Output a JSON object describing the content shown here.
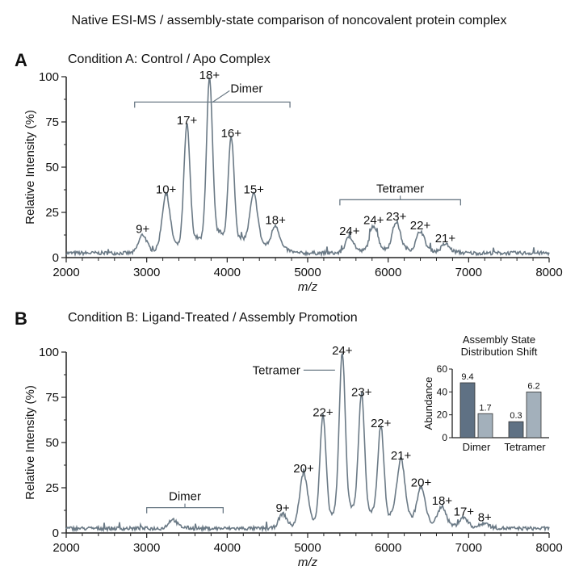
{
  "title": "Native ESI-MS  / assembly-state comparison of noncovalent protein complex",
  "colors": {
    "trace": "#6b7a86",
    "axis": "#222222",
    "bar_dark": "#5f7184",
    "bar_light": "#a3b0bb"
  },
  "chart_data": [
    {
      "type": "line",
      "panel_letter": "A",
      "title": "Condition A: Control / Apo Complex",
      "xlabel": "m/z",
      "ylabel": "Relative Intensity (%)",
      "xlim": [
        2000,
        8000
      ],
      "ylim": [
        0,
        100
      ],
      "xticks": [
        "2000",
        "3000",
        "4000",
        "5000",
        "6000",
        "7000",
        "8000"
      ],
      "yticks": [
        "0",
        "25",
        "50",
        "75",
        "100"
      ],
      "grid": false,
      "peaks": [
        {
          "mz": 2950,
          "intensity": 10,
          "label": "9+"
        },
        {
          "mz": 3240,
          "intensity": 32,
          "label": "10+"
        },
        {
          "mz": 3500,
          "intensity": 70,
          "label": "17+"
        },
        {
          "mz": 3780,
          "intensity": 95,
          "label": "18+"
        },
        {
          "mz": 4050,
          "intensity": 63,
          "label": "16+"
        },
        {
          "mz": 4330,
          "intensity": 32,
          "label": "15+"
        },
        {
          "mz": 4600,
          "intensity": 15,
          "label": "18+"
        },
        {
          "mz": 5520,
          "intensity": 9,
          "label": "24+"
        },
        {
          "mz": 5820,
          "intensity": 15,
          "label": "24+"
        },
        {
          "mz": 6100,
          "intensity": 17,
          "label": "23+"
        },
        {
          "mz": 6400,
          "intensity": 12,
          "label": "22+"
        },
        {
          "mz": 6710,
          "intensity": 5,
          "label": "21+"
        }
      ],
      "annotations": [
        {
          "label": "Dimer",
          "mz_range": [
            2850,
            4780
          ],
          "level": 86
        },
        {
          "label": "Tetramer",
          "mz_range": [
            5400,
            6900
          ],
          "level": 32
        }
      ]
    },
    {
      "type": "line",
      "panel_letter": "B",
      "title": "Condition B: Ligand-Treated / Assembly Promotion",
      "xlabel": "m/z",
      "ylabel": "Relative Intensity (%)",
      "xlim": [
        2000,
        8000
      ],
      "ylim": [
        0,
        100
      ],
      "xticks": [
        "2000",
        "3000",
        "4000",
        "5000",
        "6000",
        "7000",
        "8000"
      ],
      "yticks": [
        "0",
        "25",
        "50",
        "75",
        "100"
      ],
      "grid": false,
      "peaks": [
        {
          "mz": 3320,
          "intensity": 5,
          "label": ""
        },
        {
          "mz": 4690,
          "intensity": 8,
          "label": "9+"
        },
        {
          "mz": 4950,
          "intensity": 30,
          "label": "20+"
        },
        {
          "mz": 5190,
          "intensity": 61,
          "label": "22+"
        },
        {
          "mz": 5430,
          "intensity": 95,
          "label": "24+"
        },
        {
          "mz": 5670,
          "intensity": 72,
          "label": "23+"
        },
        {
          "mz": 5910,
          "intensity": 55,
          "label": "22+"
        },
        {
          "mz": 6160,
          "intensity": 37,
          "label": "21+"
        },
        {
          "mz": 6410,
          "intensity": 22,
          "label": "20+"
        },
        {
          "mz": 6670,
          "intensity": 12,
          "label": "18+"
        },
        {
          "mz": 6940,
          "intensity": 6,
          "label": "17+"
        },
        {
          "mz": 7200,
          "intensity": 3,
          "label": "8+"
        }
      ],
      "annotations": [
        {
          "label": "Dimer",
          "mz_range": [
            3000,
            3950
          ],
          "level": 14
        },
        {
          "label": "Tetramer",
          "mz_peak": 5430,
          "level": 90
        }
      ]
    },
    {
      "type": "bar",
      "title": "Assembly State Distribution Shift",
      "ylabel": "Abundance",
      "ylim": [
        0,
        60
      ],
      "yticks": [
        "0",
        "20",
        "40",
        "60"
      ],
      "categories": [
        "Dimer",
        "Tetramer"
      ],
      "series": [
        {
          "values": [
            48,
            14
          ],
          "data_labels": [
            "9.4",
            "0.3"
          ],
          "color": "#5f7184"
        },
        {
          "values": [
            21,
            40
          ],
          "data_labels": [
            "1.7",
            "6.2"
          ],
          "color": "#a3b0bb"
        }
      ]
    }
  ]
}
